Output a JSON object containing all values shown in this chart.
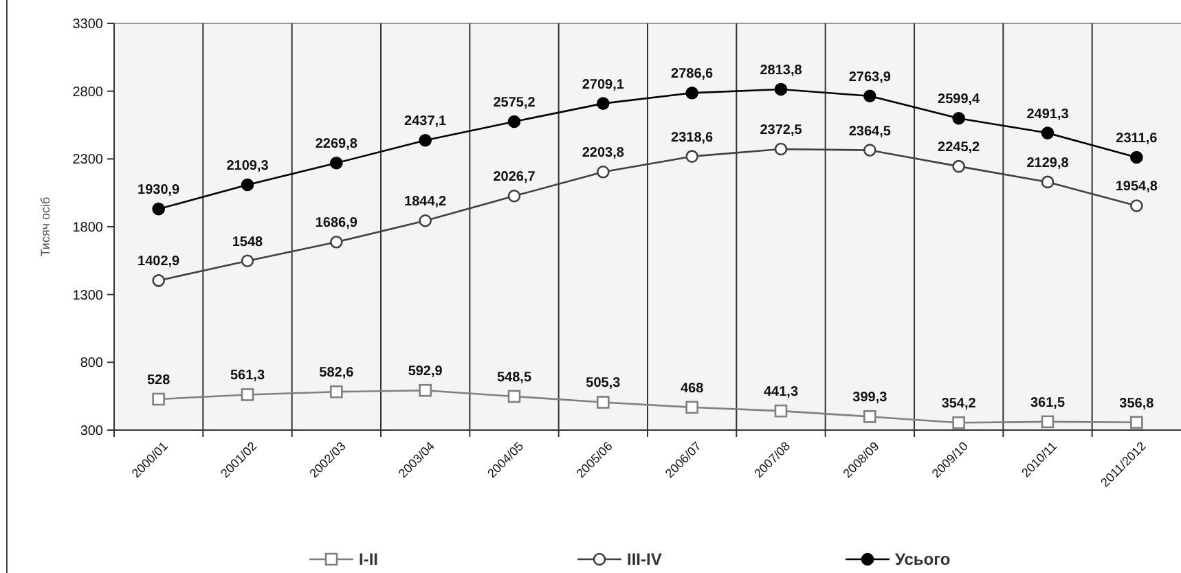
{
  "chart_data": {
    "type": "line",
    "ylabel": "Тисяч осіб",
    "categories": [
      "2000/01",
      "2001/02",
      "2002/03",
      "2003/04",
      "2004/05",
      "2005/06",
      "2006/07",
      "2007/08",
      "2008/09",
      "2009/10",
      "2010/11",
      "2011/2012"
    ],
    "series": [
      {
        "name": "I-II",
        "color": "#7f7f7f",
        "marker": "square",
        "values": [
          528,
          561.3,
          582.6,
          592.9,
          548.5,
          505.3,
          468,
          441.3,
          399.3,
          354.2,
          361.5,
          356.8
        ],
        "value_labels": [
          "528",
          "561,3",
          "582,6",
          "592,9",
          "548,5",
          "505,3",
          "468",
          "441,3",
          "399,3",
          "354,2",
          "361,5",
          "356,8"
        ]
      },
      {
        "name": "III-IV",
        "color": "#404040",
        "marker": "circle",
        "values": [
          1402.9,
          1548,
          1686.9,
          1844.2,
          2026.7,
          2203.8,
          2318.6,
          2372.5,
          2364.5,
          2245.2,
          2129.8,
          1954.8
        ],
        "value_labels": [
          "1402,9",
          "1548",
          "1686,9",
          "1844,2",
          "2026,7",
          "2203,8",
          "2318,6",
          "2372,5",
          "2364,5",
          "2245,2",
          "2129,8",
          "1954,8"
        ]
      },
      {
        "name": "Усього",
        "color": "#000000",
        "marker": "circle",
        "values": [
          1930.9,
          2109.3,
          2269.8,
          2437.1,
          2575.2,
          2709.1,
          2786.6,
          2813.8,
          2763.9,
          2599.4,
          2491.3,
          2311.6
        ],
        "value_labels": [
          "1930,9",
          "2109,3",
          "2269,8",
          "2437,1",
          "2575,2",
          "2709,1",
          "2786,6",
          "2813,8",
          "2763,9",
          "2599,4",
          "2491,3",
          "2311,6"
        ]
      }
    ],
    "ylim": [
      300,
      3300
    ],
    "yticks": [
      300,
      800,
      1300,
      1800,
      2300,
      2800,
      3300
    ],
    "grid": "x",
    "legend": "bottom"
  }
}
